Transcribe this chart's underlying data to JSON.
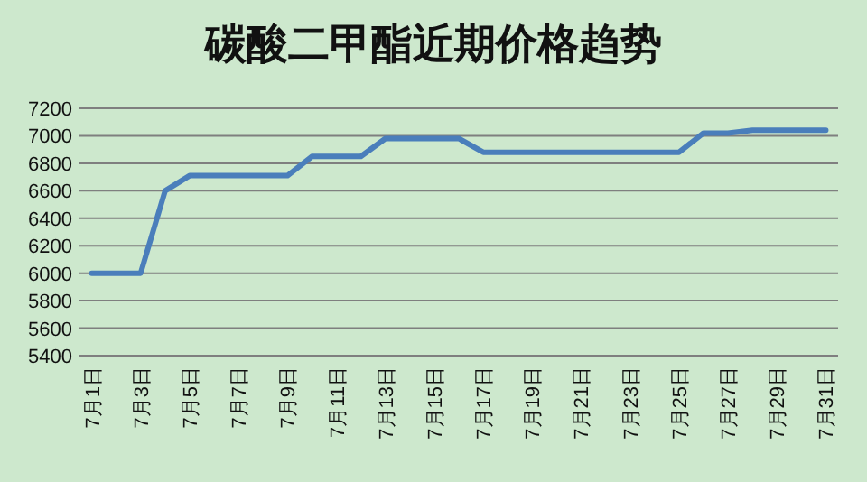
{
  "chart_data": {
    "type": "line",
    "title": "碳酸二甲酯近期价格趋势",
    "categories": [
      "7月1日",
      null,
      "7月3日",
      null,
      "7月5日",
      null,
      "7月7日",
      null,
      "7月9日",
      null,
      "7月11日",
      null,
      "7月13日",
      null,
      "7月15日",
      null,
      "7月17日",
      null,
      "7月19日",
      null,
      "7月21日",
      null,
      "7月23日",
      null,
      "7月25日",
      null,
      "7月27日",
      null,
      "7月29日",
      null,
      "7月31日"
    ],
    "values": [
      6000,
      6000,
      6000,
      6600,
      6710,
      6710,
      6710,
      6710,
      6710,
      6850,
      6850,
      6850,
      6980,
      6980,
      6980,
      6980,
      6880,
      6880,
      6880,
      6880,
      6880,
      6880,
      6880,
      6880,
      6880,
      7020,
      7020,
      7040,
      7040,
      7040,
      7040
    ],
    "color": "#4a7ebb",
    "ylim": [
      5400,
      7200
    ],
    "yticks": [
      5400,
      5600,
      5800,
      6000,
      6200,
      6400,
      6600,
      6800,
      7000,
      7200
    ],
    "grid": "y"
  }
}
